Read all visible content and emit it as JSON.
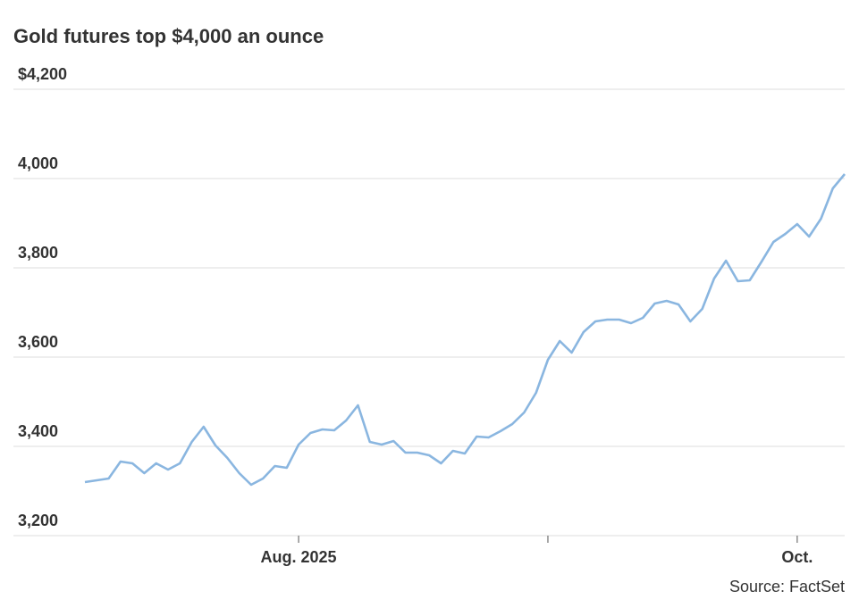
{
  "chart_data": {
    "type": "line",
    "title": "Gold futures top $4,000 an ounce",
    "source": "Source: FactSet",
    "categories": [
      null,
      null,
      null,
      null,
      null,
      null,
      null,
      null,
      null,
      null,
      null,
      null,
      null,
      null,
      null,
      null,
      null,
      null,
      "Aug. 2025",
      null,
      null,
      null,
      null,
      null,
      null,
      null,
      null,
      null,
      null,
      null,
      null,
      null,
      null,
      null,
      null,
      null,
      null,
      null,
      null,
      null,
      null,
      null,
      null,
      null,
      null,
      null,
      null,
      null,
      null,
      null,
      null,
      null,
      null,
      null,
      null,
      null,
      null,
      null,
      null,
      null,
      "Oct.",
      null,
      null,
      null,
      null
    ],
    "series": [
      {
        "color": "#8ab6e0",
        "values": [
          3320,
          3324,
          3328,
          3366,
          3362,
          3340,
          3362,
          3348,
          3362,
          3410,
          3444,
          3402,
          3374,
          3340,
          3314,
          3328,
          3356,
          3352,
          3404,
          3430,
          3438,
          3436,
          3458,
          3492,
          3410,
          3404,
          3412,
          3386,
          3386,
          3380,
          3362,
          3390,
          3384,
          3422,
          3420,
          3434,
          3450,
          3476,
          3520,
          3594,
          3636,
          3610,
          3656,
          3680,
          3684,
          3684,
          3676,
          3688,
          3720,
          3726,
          3718,
          3680,
          3708,
          3776,
          3816,
          3770,
          3772,
          3814,
          3858,
          3876,
          3898,
          3870,
          3910,
          3978,
          4010
        ]
      }
    ],
    "ylim": [
      3200,
      4200
    ],
    "yticks": [
      {
        "value": 3200,
        "label": "3,200"
      },
      {
        "value": 3400,
        "label": "3,400"
      },
      {
        "value": 3600,
        "label": "3,600"
      },
      {
        "value": 3800,
        "label": "3,800"
      },
      {
        "value": 4000,
        "label": "4,000"
      },
      {
        "value": 4200,
        "label": "$4,200"
      }
    ],
    "grid": true
  }
}
